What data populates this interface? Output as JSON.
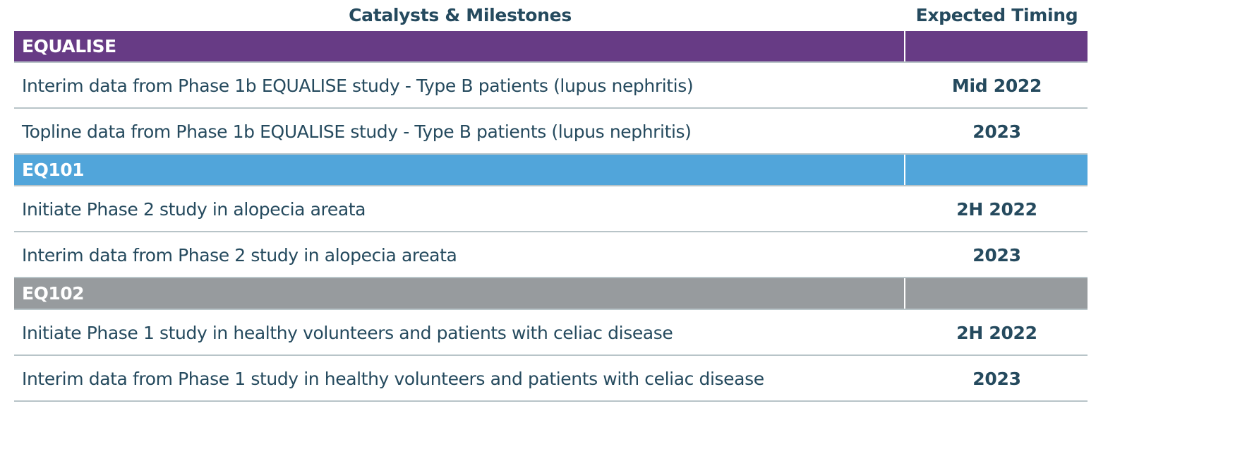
{
  "table": {
    "headers": {
      "milestone": "Catalysts & Milestones",
      "timing": "Expected Timing"
    },
    "sections": [
      {
        "name": "EQUALISE",
        "color": "#673b85",
        "rows": [
          {
            "milestone": "Interim data from Phase 1b EQUALISE study - Type B patients (lupus nephritis)",
            "timing": "Mid 2022"
          },
          {
            "milestone": "Topline data from Phase 1b EQUALISE study - Type B patients (lupus nephritis)",
            "timing": "2023"
          }
        ]
      },
      {
        "name": "EQ101",
        "color": "#51a5da",
        "rows": [
          {
            "milestone": "Initiate Phase 2 study in alopecia areata",
            "timing": "2H 2022"
          },
          {
            "milestone": "Interim data from Phase 2 study in alopecia areata",
            "timing": "2023"
          }
        ]
      },
      {
        "name": "EQ102",
        "color": "#979b9e",
        "rows": [
          {
            "milestone": "Initiate Phase 1 study in healthy volunteers and patients with celiac disease",
            "timing": "2H 2022"
          },
          {
            "milestone": "Interim data from Phase 1 study in healthy volunteers and patients with celiac disease",
            "timing": "2023"
          }
        ]
      }
    ]
  }
}
